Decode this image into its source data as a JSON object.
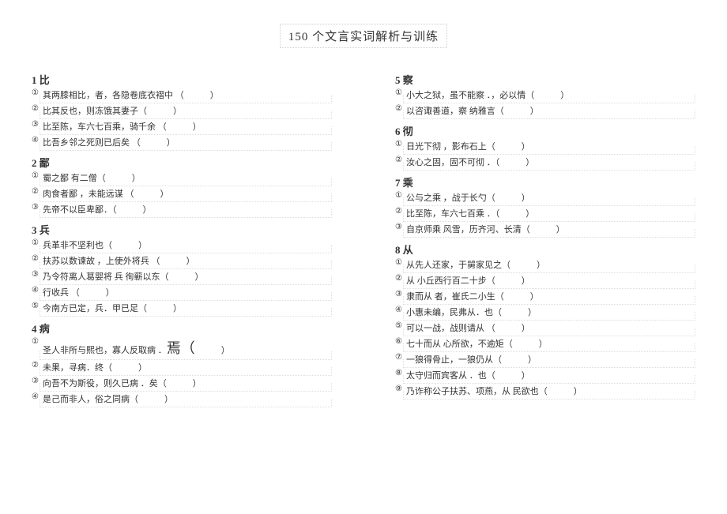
{
  "title": "150 个文言实词解析与训练",
  "left": [
    {
      "head": "1 比",
      "items": [
        {
          "n": "①",
          "t": "其两膝相比，者，各隐卷底衣褶中 （　　　）"
        },
        {
          "n": "②",
          "t": "比其反也，则冻饿其妻子（　　　）"
        },
        {
          "n": "③",
          "t": "比至陈，车六七百乘，骑千余 （　　　）"
        },
        {
          "n": "④",
          "t": "比吾乡邻之死则已后矣 （　　　）"
        }
      ]
    },
    {
      "head": "2 鄙",
      "items": [
        {
          "n": "①",
          "t": "蜀之鄙 有二僧（　　　）"
        },
        {
          "n": "②",
          "t": "肉食者鄙 ，未能远谋 （　　　）"
        },
        {
          "n": "③",
          "t": "先帝不以臣卑鄙．（　　　）"
        }
      ]
    },
    {
      "head": "3 兵",
      "items": [
        {
          "n": "①",
          "t": "兵革非不坚利也（　　　）"
        },
        {
          "n": "②",
          "t": "扶苏以数谏故 ，上使外将兵 （　　　）"
        },
        {
          "n": "③",
          "t": "乃令符离人葛婴将 兵 徇蕲以东（　　　）"
        },
        {
          "n": "④",
          "t": "行收兵 （　　　）"
        },
        {
          "n": "⑤",
          "t": "今南方已定，兵．甲已足（　　　）"
        }
      ]
    },
    {
      "head": "4 病",
      "items": [
        {
          "n": "①",
          "t": "圣人非所与熙也，寡人反取病 ．<span class=\"big\">焉（</span>　　　）"
        },
        {
          "n": "②",
          "t": "未果，寻病．终（　　　）"
        },
        {
          "n": "③",
          "t": "向吾不为斯役，则久已病 ．矣（　　　）"
        },
        {
          "n": "④",
          "t": "是己而非人，俗之同病（　　　）"
        }
      ]
    }
  ],
  "right": [
    {
      "head": "5 察",
      "items": [
        {
          "n": "①",
          "t": "小大之狱，虽不能察 ．，必以情（　　　）"
        },
        {
          "n": "②",
          "t": "以咨诹善道，察 纳雅言（　　　）"
        }
      ]
    },
    {
      "head": "6 彻",
      "items": [
        {
          "n": "①",
          "t": "日光下彻 ，影布石上（　　　）"
        },
        {
          "n": "②",
          "t": "汝心之固，固不可彻 ．（　　　）"
        }
      ]
    },
    {
      "head": "7 乘",
      "items": [
        {
          "n": "①",
          "t": "公与之乘 ，战于长勺（　　　）"
        },
        {
          "n": "②",
          "t": "比至陈，车六七百乘 ．（　　　）"
        },
        {
          "n": "③",
          "t": "自京师乘 风雪，历齐河、长清（　　　）"
        }
      ]
    },
    {
      "head": "8 从",
      "items": [
        {
          "n": "①",
          "t": "从先人还家，于舅家见之（　　　）"
        },
        {
          "n": "②",
          "t": "从 小丘西行百二十步（　　　）"
        },
        {
          "n": "③",
          "t": "隶而从 者，崔氏二小生（　　　）"
        },
        {
          "n": "④",
          "t": "小惠未编，民弗从．也（　　　）"
        },
        {
          "n": "⑤",
          "t": "可以一战，战则请从 （　　　）"
        },
        {
          "n": "⑥",
          "t": "七十而从 心所欲，不逾矩（　　　）"
        },
        {
          "n": "⑦",
          "t": "一狼得骨止，一狼仍从（　　　）"
        },
        {
          "n": "⑧",
          "t": "太守归而宾客从 ．也（　　　）"
        },
        {
          "n": "⑨",
          "t": "乃诈称公子扶苏、项燕，从 民欲也（　　　）"
        }
      ]
    }
  ]
}
